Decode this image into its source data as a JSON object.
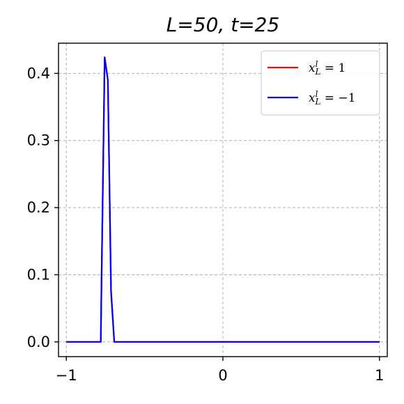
{
  "chart_data": {
    "type": "line",
    "title": "L=50, t=25",
    "xlabel": "",
    "ylabel": "",
    "xlim": [
      -1.05,
      1.05
    ],
    "ylim": [
      -0.022,
      0.445
    ],
    "xticks": [
      -1,
      0,
      1
    ],
    "xtick_labels": [
      "−1",
      "0",
      "1"
    ],
    "yticks": [
      0.0,
      0.1,
      0.2,
      0.3,
      0.4
    ],
    "ytick_labels": [
      "0.0",
      "0.1",
      "0.2",
      "0.3",
      "0.4"
    ],
    "grid": true,
    "legend_position": "top-right",
    "series": [
      {
        "name": "x_L^l = 1",
        "color": "#ff0000",
        "x": [
          -1.0,
          -0.78,
          -0.7755,
          -0.7551,
          -0.7347,
          -0.7143,
          -0.6939,
          -0.68,
          1.0
        ],
        "y": [
          0.0,
          0.0,
          0.085,
          0.424,
          0.39,
          0.075,
          0.0,
          0.0,
          0.0
        ]
      },
      {
        "name": "x_L^l = −1",
        "color": "#0000ff",
        "x": [
          -1.0,
          -0.78,
          -0.7755,
          -0.7551,
          -0.7347,
          -0.7143,
          -0.6939,
          -0.68,
          1.0
        ],
        "y": [
          0.0,
          0.0,
          0.085,
          0.424,
          0.39,
          0.075,
          0.0,
          0.0,
          0.0
        ]
      }
    ]
  }
}
